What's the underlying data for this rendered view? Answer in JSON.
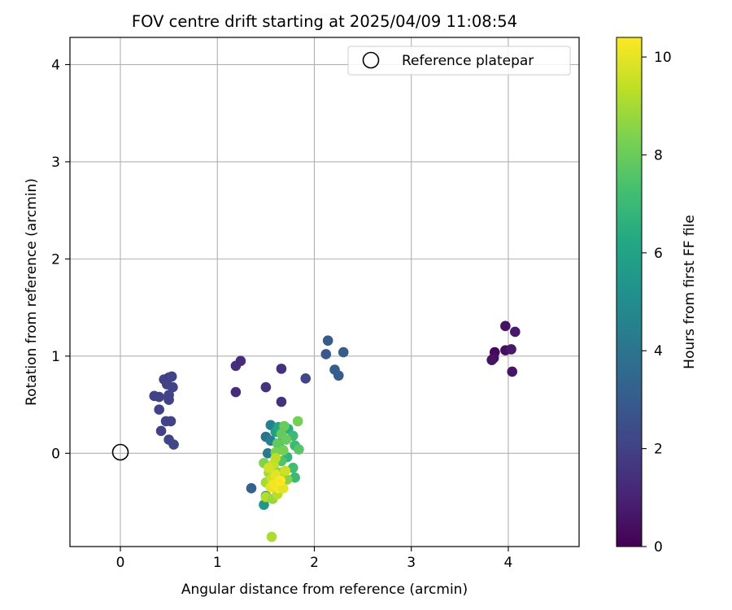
{
  "chart_data": {
    "type": "scatter",
    "title": "FOV centre drift starting at 2025/04/09 11:08:54",
    "xlabel": "Angular distance from reference (arcmin)",
    "ylabel": "Rotation from reference (arcmin)",
    "xlim": [
      -0.52,
      4.73
    ],
    "ylim": [
      -0.96,
      4.28
    ],
    "xticks": [
      0,
      1,
      2,
      3,
      4
    ],
    "yticks": [
      0,
      1,
      2,
      3,
      4
    ],
    "grid": true,
    "legend": {
      "position": "top-right",
      "label": "Reference platepar"
    },
    "reference_point": {
      "x": 0,
      "y": 0
    },
    "colorbar": {
      "label": "Hours from first FF file",
      "min": 0,
      "max": 10.4,
      "ticks": [
        0,
        2,
        4,
        6,
        8,
        10
      ],
      "colormap": "viridis"
    },
    "points": [
      {
        "x": 3.86,
        "y": 1.04,
        "c": 0.2
      },
      {
        "x": 3.85,
        "y": 0.98,
        "c": 0.4
      },
      {
        "x": 3.83,
        "y": 0.96,
        "c": 0.5
      },
      {
        "x": 3.97,
        "y": 1.31,
        "c": 0.5
      },
      {
        "x": 3.97,
        "y": 1.06,
        "c": 0.4
      },
      {
        "x": 4.03,
        "y": 1.07,
        "c": 0.7
      },
      {
        "x": 4.07,
        "y": 1.25,
        "c": 0.7
      },
      {
        "x": 4.04,
        "y": 0.84,
        "c": 0.6
      },
      {
        "x": 1.19,
        "y": 0.9,
        "c": 1.4
      },
      {
        "x": 1.24,
        "y": 0.95,
        "c": 1.3
      },
      {
        "x": 1.19,
        "y": 0.63,
        "c": 1.3
      },
      {
        "x": 1.5,
        "y": 0.68,
        "c": 1.5
      },
      {
        "x": 1.66,
        "y": 0.87,
        "c": 1.5
      },
      {
        "x": 1.66,
        "y": 0.53,
        "c": 1.5
      },
      {
        "x": 1.91,
        "y": 0.77,
        "c": 2.2
      },
      {
        "x": 0.45,
        "y": 0.76,
        "c": 2.0
      },
      {
        "x": 0.5,
        "y": 0.78,
        "c": 1.9
      },
      {
        "x": 0.53,
        "y": 0.79,
        "c": 2.0
      },
      {
        "x": 0.48,
        "y": 0.71,
        "c": 2.0
      },
      {
        "x": 0.54,
        "y": 0.68,
        "c": 2.0
      },
      {
        "x": 0.35,
        "y": 0.59,
        "c": 2.1
      },
      {
        "x": 0.4,
        "y": 0.58,
        "c": 2.0
      },
      {
        "x": 0.5,
        "y": 0.6,
        "c": 2.1
      },
      {
        "x": 0.5,
        "y": 0.55,
        "c": 2.0
      },
      {
        "x": 0.4,
        "y": 0.45,
        "c": 2.0
      },
      {
        "x": 0.47,
        "y": 0.33,
        "c": 2.1
      },
      {
        "x": 0.52,
        "y": 0.33,
        "c": 2.0
      },
      {
        "x": 0.42,
        "y": 0.23,
        "c": 2.0
      },
      {
        "x": 0.5,
        "y": 0.14,
        "c": 2.1
      },
      {
        "x": 0.55,
        "y": 0.09,
        "c": 2.2
      },
      {
        "x": 2.14,
        "y": 1.16,
        "c": 3.0
      },
      {
        "x": 2.12,
        "y": 1.02,
        "c": 2.9
      },
      {
        "x": 2.3,
        "y": 1.04,
        "c": 3.0
      },
      {
        "x": 2.21,
        "y": 0.86,
        "c": 3.1
      },
      {
        "x": 2.25,
        "y": 0.8,
        "c": 3.1
      },
      {
        "x": 1.35,
        "y": -0.36,
        "c": 3.2
      },
      {
        "x": 1.55,
        "y": 0.29,
        "c": 4.5
      },
      {
        "x": 1.5,
        "y": 0.17,
        "c": 4.0
      },
      {
        "x": 1.55,
        "y": 0.13,
        "c": 4.5
      },
      {
        "x": 1.52,
        "y": 0.0,
        "c": 4.2
      },
      {
        "x": 1.5,
        "y": -0.44,
        "c": 4.6
      },
      {
        "x": 1.48,
        "y": -0.53,
        "c": 5.5
      },
      {
        "x": 1.6,
        "y": 0.22,
        "c": 5.8
      },
      {
        "x": 1.63,
        "y": 0.27,
        "c": 6.2
      },
      {
        "x": 1.68,
        "y": 0.15,
        "c": 6.3
      },
      {
        "x": 1.73,
        "y": 0.25,
        "c": 6.5
      },
      {
        "x": 1.78,
        "y": 0.18,
        "c": 7.0
      },
      {
        "x": 1.65,
        "y": 0.05,
        "c": 6.6
      },
      {
        "x": 1.8,
        "y": 0.08,
        "c": 7.0
      },
      {
        "x": 1.72,
        "y": -0.04,
        "c": 6.8
      },
      {
        "x": 1.78,
        "y": -0.15,
        "c": 7.2
      },
      {
        "x": 1.8,
        "y": -0.25,
        "c": 7.0
      },
      {
        "x": 1.84,
        "y": 0.04,
        "c": 7.6
      },
      {
        "x": 1.83,
        "y": 0.33,
        "c": 8.2
      },
      {
        "x": 1.69,
        "y": 0.28,
        "c": 8.0
      },
      {
        "x": 1.66,
        "y": 0.2,
        "c": 7.9
      },
      {
        "x": 1.71,
        "y": 0.14,
        "c": 8.0
      },
      {
        "x": 1.62,
        "y": 0.1,
        "c": 7.8
      },
      {
        "x": 1.6,
        "y": 0.01,
        "c": 8.3
      },
      {
        "x": 1.68,
        "y": 0.03,
        "c": 8.2
      },
      {
        "x": 1.66,
        "y": -0.08,
        "c": 7.5
      },
      {
        "x": 1.48,
        "y": -0.1,
        "c": 8.4
      },
      {
        "x": 1.53,
        "y": -0.2,
        "c": 8.9
      },
      {
        "x": 1.58,
        "y": -0.15,
        "c": 8.6
      },
      {
        "x": 1.65,
        "y": -0.2,
        "c": 8.7
      },
      {
        "x": 1.62,
        "y": -0.3,
        "c": 8.3
      },
      {
        "x": 1.72,
        "y": -0.27,
        "c": 8.5
      },
      {
        "x": 1.5,
        "y": -0.3,
        "c": 9.0
      },
      {
        "x": 1.5,
        "y": -0.45,
        "c": 9.2
      },
      {
        "x": 1.57,
        "y": -0.47,
        "c": 8.8
      },
      {
        "x": 1.62,
        "y": -0.42,
        "c": 9.3
      },
      {
        "x": 1.56,
        "y": -0.26,
        "c": 9.6
      },
      {
        "x": 1.6,
        "y": -0.22,
        "c": 10.0
      },
      {
        "x": 1.55,
        "y": -0.35,
        "c": 10.0
      },
      {
        "x": 1.58,
        "y": -0.32,
        "c": 10.2
      },
      {
        "x": 1.63,
        "y": -0.36,
        "c": 10.3
      },
      {
        "x": 1.68,
        "y": -0.36,
        "c": 10.0
      },
      {
        "x": 1.65,
        "y": -0.28,
        "c": 10.4
      },
      {
        "x": 1.58,
        "y": -0.11,
        "c": 9.5
      },
      {
        "x": 1.53,
        "y": -0.15,
        "c": 9.7
      },
      {
        "x": 1.6,
        "y": -0.05,
        "c": 9.4
      },
      {
        "x": 1.7,
        "y": -0.18,
        "c": 9.6
      },
      {
        "x": 1.56,
        "y": -0.86,
        "c": 9.1
      }
    ]
  }
}
